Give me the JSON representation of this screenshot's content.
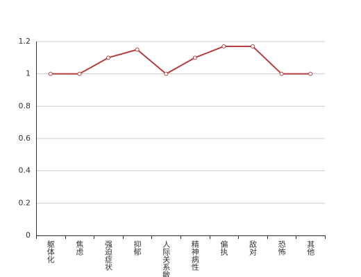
{
  "chart_data": {
    "type": "line",
    "categories": [
      "躯体化",
      "焦虑",
      "强迫症状",
      "抑郁",
      "人际关系敏感",
      "精神病性",
      "偏执",
      "敌对",
      "恐怖",
      "其他"
    ],
    "values": [
      1,
      1,
      1.1,
      1.15,
      1,
      1.1,
      1.17,
      1.17,
      1,
      1
    ],
    "color": "#b83b3b",
    "ylim": [
      0,
      1.2
    ],
    "yticks": [
      0,
      0.2,
      0.4,
      0.6,
      0.8,
      1,
      1.2
    ],
    "grid": true
  }
}
